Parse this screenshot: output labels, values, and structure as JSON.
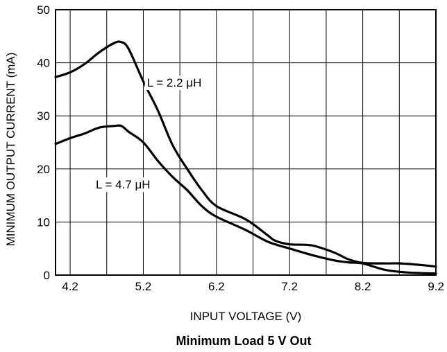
{
  "chart_data": {
    "type": "line",
    "xlabel": "INPUT VOLTAGE (V)",
    "ylabel": "MINIMUM OUTPUT CURRENT (mA)",
    "caption": "Minimum Load 5 V Out",
    "xlim": [
      4.0,
      9.2
    ],
    "ylim": [
      0,
      50
    ],
    "x_ticks": [
      "4.2",
      "5.2",
      "6.2",
      "7.2",
      "8.2",
      "9.2"
    ],
    "y_ticks": [
      "0",
      "10",
      "20",
      "30",
      "40",
      "50"
    ],
    "grid": true,
    "annotations": [
      {
        "id": "l22",
        "text": "L = 2.2 μH",
        "x": 5.25,
        "y": 35.5
      },
      {
        "id": "l47",
        "text": "L = 4.7 μH",
        "x": 4.55,
        "y": 16.3
      }
    ],
    "series": [
      {
        "label_ref": "l22",
        "points": [
          [
            4.0,
            37.3
          ],
          [
            4.2,
            38.2
          ],
          [
            4.4,
            39.8
          ],
          [
            4.6,
            42.0
          ],
          [
            4.8,
            43.7
          ],
          [
            4.9,
            43.9
          ],
          [
            5.0,
            42.6
          ],
          [
            5.2,
            36.5
          ],
          [
            5.4,
            31.0
          ],
          [
            5.6,
            24.5
          ],
          [
            5.8,
            20.0
          ],
          [
            6.0,
            16.0
          ],
          [
            6.2,
            13.0
          ],
          [
            6.6,
            10.5
          ],
          [
            6.9,
            7.5
          ],
          [
            7.0,
            6.5
          ],
          [
            7.2,
            5.8
          ],
          [
            7.5,
            5.6
          ],
          [
            7.8,
            4.3
          ],
          [
            8.0,
            3.0
          ],
          [
            8.2,
            2.3
          ],
          [
            8.5,
            2.2
          ],
          [
            8.7,
            2.2
          ],
          [
            9.0,
            1.9
          ],
          [
            9.2,
            1.6
          ]
        ]
      },
      {
        "label_ref": "l47",
        "points": [
          [
            4.0,
            24.7
          ],
          [
            4.2,
            25.8
          ],
          [
            4.4,
            26.7
          ],
          [
            4.6,
            27.8
          ],
          [
            4.8,
            28.1
          ],
          [
            4.9,
            28.1
          ],
          [
            5.0,
            27.0
          ],
          [
            5.2,
            25.0
          ],
          [
            5.4,
            21.5
          ],
          [
            5.6,
            18.5
          ],
          [
            5.8,
            16.0
          ],
          [
            6.0,
            13.0
          ],
          [
            6.2,
            11.0
          ],
          [
            6.6,
            8.5
          ],
          [
            6.9,
            6.3
          ],
          [
            7.2,
            5.0
          ],
          [
            7.5,
            3.8
          ],
          [
            7.8,
            2.8
          ],
          [
            8.0,
            2.4
          ],
          [
            8.2,
            2.2
          ],
          [
            8.5,
            1.0
          ],
          [
            8.8,
            0.5
          ],
          [
            9.2,
            0.3
          ]
        ]
      }
    ]
  }
}
